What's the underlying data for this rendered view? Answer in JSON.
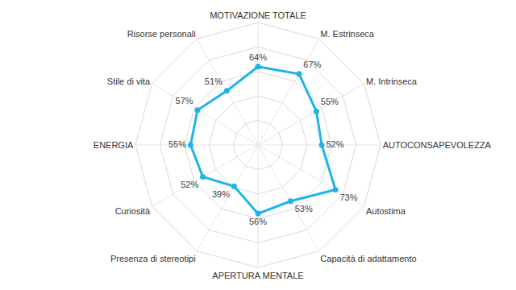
{
  "chart_data": {
    "type": "radar",
    "categories": [
      "MOTIVAZIONE TOTALE",
      "M. Estrinseca",
      "M. Intrinseca",
      "AUTOCONSAPEVOLEZZA",
      "Autostima",
      "Capacità di adattamento",
      "APERTURA MENTALE",
      "Presenza di stereotipi",
      "Curiosità",
      "ENERGIA",
      "Stile di vita",
      "Risorse personali"
    ],
    "values": [
      64,
      67,
      55,
      52,
      73,
      53,
      56,
      39,
      52,
      55,
      57,
      51
    ],
    "value_labels": [
      "64%",
      "67%",
      "55%",
      "52%",
      "73%",
      "53%",
      "56%",
      "39%",
      "52%",
      "55%",
      "57%",
      "51%"
    ],
    "color": "#1fb3e8",
    "marker": "circle",
    "ylim": [
      0,
      100
    ],
    "yticks": [
      0,
      20,
      40,
      60,
      80,
      100
    ],
    "grid": true,
    "data_labels": true,
    "tick_labels": "x"
  }
}
